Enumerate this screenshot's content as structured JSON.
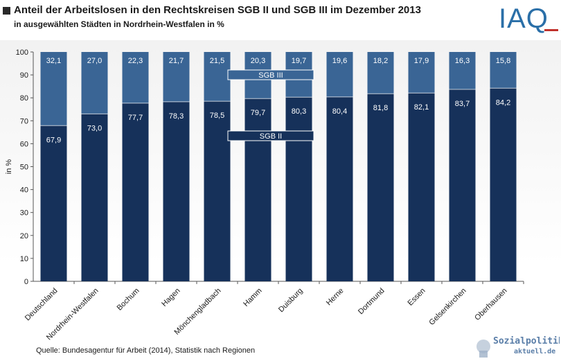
{
  "title": "Anteil der Arbeitslosen in den Rechtskreisen SGB II und SGB III im Dezember 2013",
  "subtitle": "in ausgewählten Städten in Nordrhein-Westfalen  in %",
  "logo_text": "IAQ",
  "source": "Quelle: Bundesagentur  für Arbeit (2014), Statistik  nach Regionen",
  "watermark": {
    "line1": "Sozialpolitik-",
    "line2": "aktuell.de"
  },
  "colors": {
    "sgb2": "#16315a",
    "sgb3": "#3a6595",
    "logo": "#2a6fa8"
  },
  "chart_data": {
    "type": "bar",
    "stacked": true,
    "ylabel": "in %",
    "ylim": [
      0,
      100
    ],
    "yticks": [
      0,
      10,
      20,
      30,
      40,
      50,
      60,
      70,
      80,
      90,
      100
    ],
    "grid": false,
    "categories": [
      "Deutschland",
      "Nordrhein-Westfalen",
      "Bochum",
      "Hagen",
      "Mönchengladbach",
      "Hamm",
      "Duisburg",
      "Herne",
      "Dortmund",
      "Essen",
      "Gelsenkirchen",
      "Oberhausen"
    ],
    "series": [
      {
        "name": "SGB II",
        "values": [
          67.9,
          73.0,
          77.7,
          78.3,
          78.5,
          79.7,
          80.3,
          80.4,
          81.8,
          82.1,
          83.7,
          84.2
        ],
        "labels": [
          "67,9",
          "73,0",
          "77,7",
          "78,3",
          "78,5",
          "79,7",
          "80,3",
          "80,4",
          "81,8",
          "82,1",
          "83,7",
          "84,2"
        ]
      },
      {
        "name": "SGB III",
        "values": [
          32.1,
          27.0,
          22.3,
          21.7,
          21.5,
          20.3,
          19.7,
          19.6,
          18.2,
          17.9,
          16.3,
          15.8
        ],
        "labels": [
          "32,1",
          "27,0",
          "22,3",
          "21,7",
          "21,5",
          "20,3",
          "19,7",
          "19,6",
          "18,2",
          "17,9",
          "16,3",
          "15,8"
        ]
      }
    ],
    "legend_placement": "inside bars (Hamm–Duisburg)"
  }
}
